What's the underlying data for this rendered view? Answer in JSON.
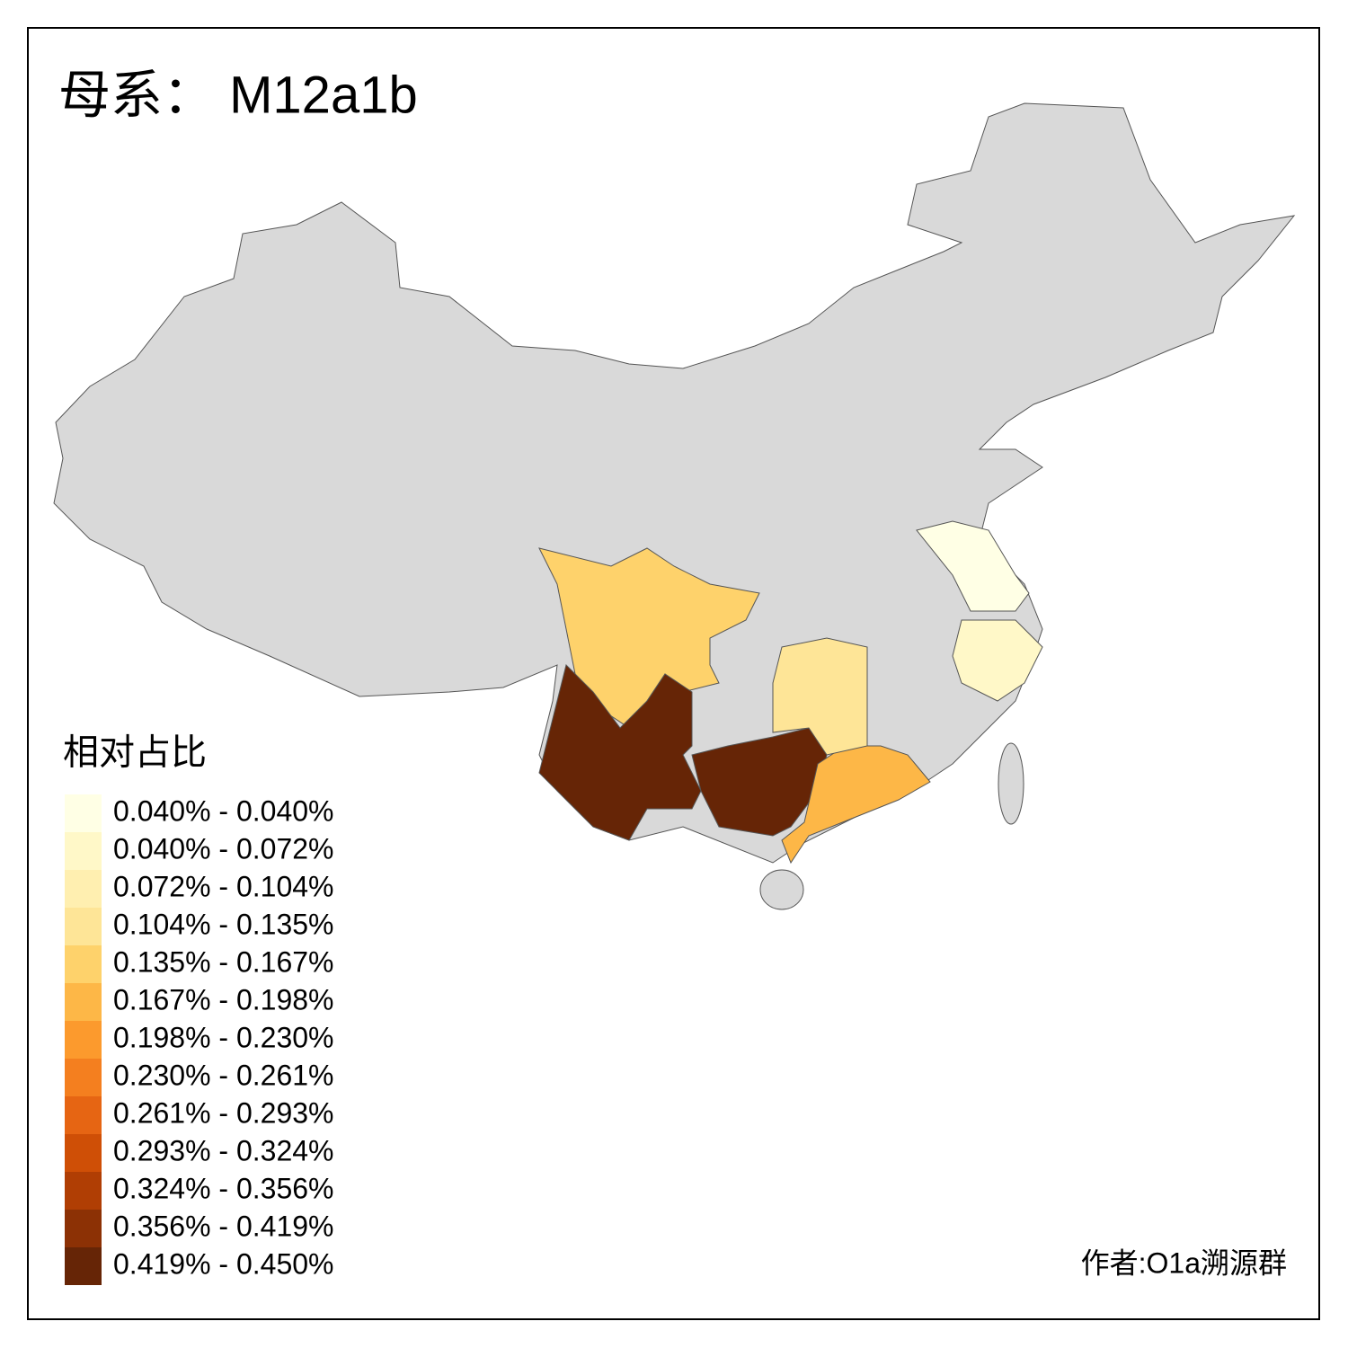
{
  "title": "母系： M12a1b",
  "legend": {
    "title": "相对占比",
    "items": [
      {
        "label": "0.040% - 0.040%",
        "color": "#ffffe5"
      },
      {
        "label": "0.040% - 0.072%",
        "color": "#fff8c8"
      },
      {
        "label": "0.072% - 0.104%",
        "color": "#ffefb0"
      },
      {
        "label": "0.104% - 0.135%",
        "color": "#fee597"
      },
      {
        "label": "0.135% - 0.167%",
        "color": "#fed26b"
      },
      {
        "label": "0.167% - 0.198%",
        "color": "#fdb747"
      },
      {
        "label": "0.198% - 0.230%",
        "color": "#fc9a2d"
      },
      {
        "label": "0.230% - 0.261%",
        "color": "#f47f1f"
      },
      {
        "label": "0.261% - 0.293%",
        "color": "#e66513"
      },
      {
        "label": "0.293% - 0.324%",
        "color": "#cf4f06"
      },
      {
        "label": "0.324% - 0.356%",
        "color": "#b03e04"
      },
      {
        "label": "0.356% - 0.419%",
        "color": "#8c3105"
      },
      {
        "label": "0.419% - 0.450%",
        "color": "#662506"
      }
    ]
  },
  "author": "作者:O1a溯源群"
}
